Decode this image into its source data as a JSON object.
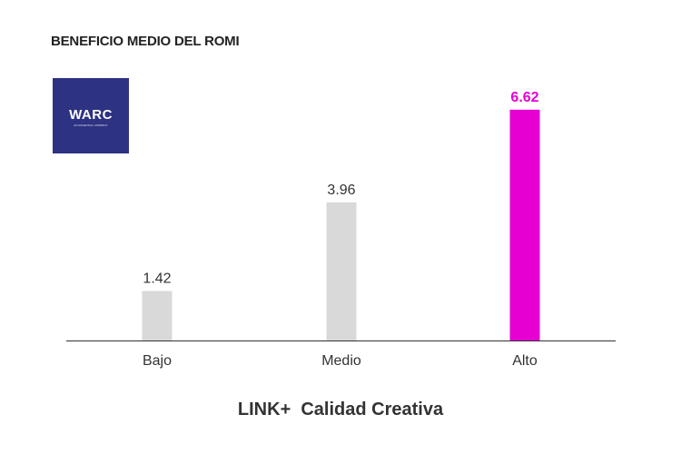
{
  "chart_data": {
    "type": "bar",
    "title": "BENEFICIO MEDIO DEL ROMI",
    "xlabel": "LINK+  Calidad Creativa",
    "ylabel": "",
    "categories": [
      "Bajo",
      "Medio",
      "Alto"
    ],
    "values": [
      1.42,
      3.96,
      6.62
    ],
    "data_labels": [
      "1.42",
      "3.96",
      "6.62"
    ],
    "colors": [
      "#d9d9d9",
      "#d9d9d9",
      "#e600d2"
    ],
    "label_colors": [
      "#333333",
      "#333333",
      "#e600d2"
    ],
    "ylim": [
      0,
      7
    ],
    "grid": false,
    "legend": "none"
  },
  "logo": {
    "name": "WARC",
    "tagline": "AN ASCENTIAL COMPANY",
    "color": "#2e3282"
  }
}
